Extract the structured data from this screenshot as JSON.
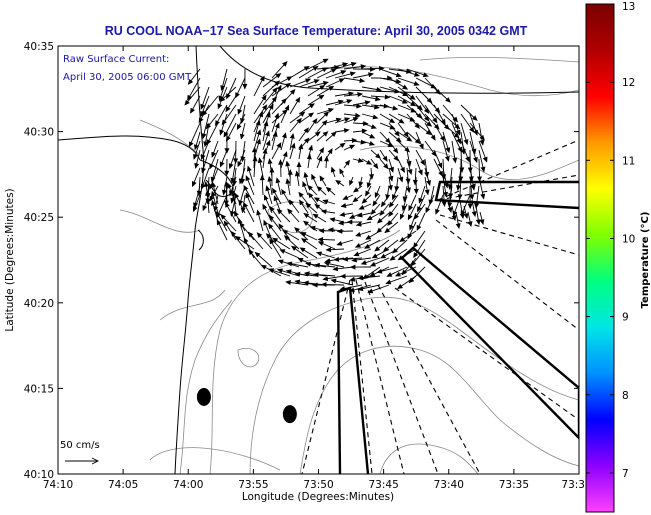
{
  "chart_data": {
    "type": "map-vector-field",
    "title": "RU COOL  NOAA−17  Sea Surface Temperature:  April 30, 2005 0342 GMT",
    "xlabel": "Longitude (Degrees:Minutes)",
    "ylabel": "Latitude (Degrees:Minutes)",
    "x_ticks": [
      "74:10",
      "74:05",
      "74:00",
      "73:55",
      "73:50",
      "73:45",
      "73:40",
      "73:35",
      "73:3"
    ],
    "y_ticks": [
      "40:35",
      "40:30",
      "40:25",
      "40:20",
      "40:15",
      "40:10"
    ],
    "xlim_deg": [
      -74.1667,
      -73.5
    ],
    "ylim_deg": [
      40.1667,
      40.5833
    ],
    "annotation_lines": [
      "Raw Surface Current:",
      "April 30, 2005 06:00 GMT"
    ],
    "scale_label": "50 cm/s",
    "colorbar": {
      "label": "Temperature (°C)",
      "range": [
        6.5,
        13
      ],
      "ticks": [
        "13",
        "12",
        "11",
        "10",
        "9",
        "8",
        "7"
      ],
      "tick_values": [
        13,
        12,
        11,
        10,
        9,
        8,
        7
      ]
    },
    "markers": [
      {
        "name": "mooring-marker-west",
        "lon": -73.98,
        "lat": 40.2417
      },
      {
        "name": "mooring-marker-east",
        "lon": -73.87,
        "lat": 40.225
      }
    ],
    "current_field_description": "Clockwise eddy of surface currents centred near 40:26N 73:48W, strong southward flow along the New Jersey coast near 74:00W"
  },
  "colors": {
    "title": "#1a1aa6",
    "annotation": "#1a1aa6",
    "vectors": "#000000",
    "contours": "#8a8a8a",
    "coast": "#000000",
    "colorbar_stops": [
      "#ff40ff",
      "#8c00ff",
      "#0000ff",
      "#0090ff",
      "#00e6e6",
      "#00ff80",
      "#80ff00",
      "#ffff00",
      "#ff9900",
      "#ff0000",
      "#b00000",
      "#7a0000"
    ]
  }
}
